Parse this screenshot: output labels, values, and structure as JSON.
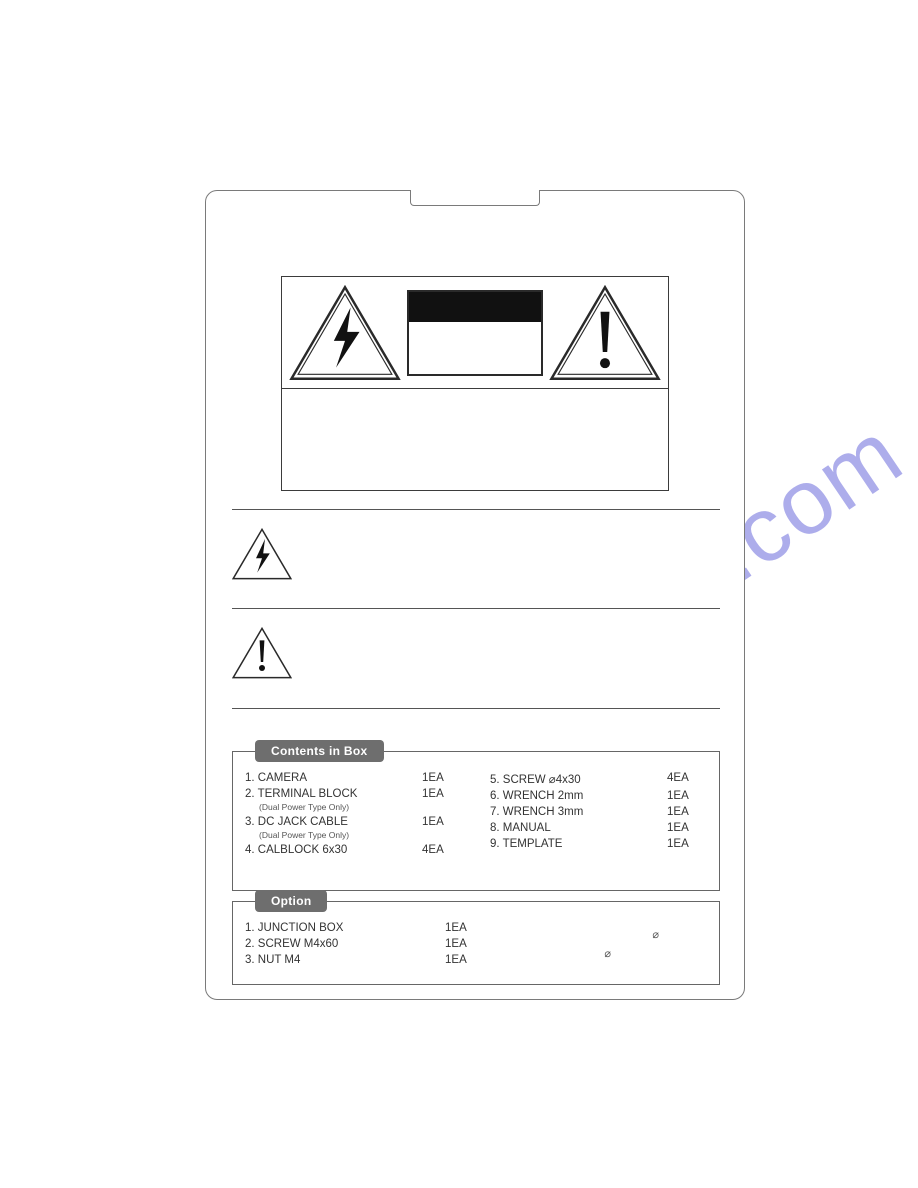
{
  "watermark": "manualshive.com",
  "sections": {
    "contents": {
      "title": "Contents in Box",
      "left_items": [
        {
          "n": "1.",
          "label": "CAMERA",
          "sub": "",
          "qty": "1EA"
        },
        {
          "n": "2.",
          "label": "TERMINAL BLOCK",
          "sub": "(Dual Power Type Only)",
          "qty": "1EA"
        },
        {
          "n": "3.",
          "label": "DC JACK CABLE",
          "sub": "(Dual Power Type Only)",
          "qty": "1EA"
        },
        {
          "n": "4.",
          "label": "CALBLOCK   6x30",
          "sub": "",
          "qty": "4EA"
        }
      ],
      "right_items": [
        {
          "n": "5.",
          "label": "SCREW ⌀4x30",
          "qty": "4EA"
        },
        {
          "n": "6.",
          "label": "WRENCH  2mm",
          "qty": "1EA"
        },
        {
          "n": "7.",
          "label": "WRENCH  3mm",
          "qty": "1EA"
        },
        {
          "n": "8.",
          "label": "MANUAL",
          "qty": "1EA"
        },
        {
          "n": "9.",
          "label": "TEMPLATE",
          "qty": "1EA"
        }
      ]
    },
    "option": {
      "title": "Option",
      "items": [
        {
          "n": "1.",
          "label": "JUNCTION BOX",
          "qty": "1EA"
        },
        {
          "n": "2.",
          "label": "SCREW  M4x60",
          "qty": "1EA"
        },
        {
          "n": "3.",
          "label": "NUT  M4",
          "qty": "1EA"
        }
      ],
      "extra_top": "⌀",
      "extra_bot": "⌀"
    }
  },
  "colors": {
    "border": "#7a7a7a",
    "section_label_bg": "#6e6e6e",
    "section_label_fg": "#ffffff",
    "text": "#333333",
    "icon_stroke": "#2a2a2a"
  }
}
